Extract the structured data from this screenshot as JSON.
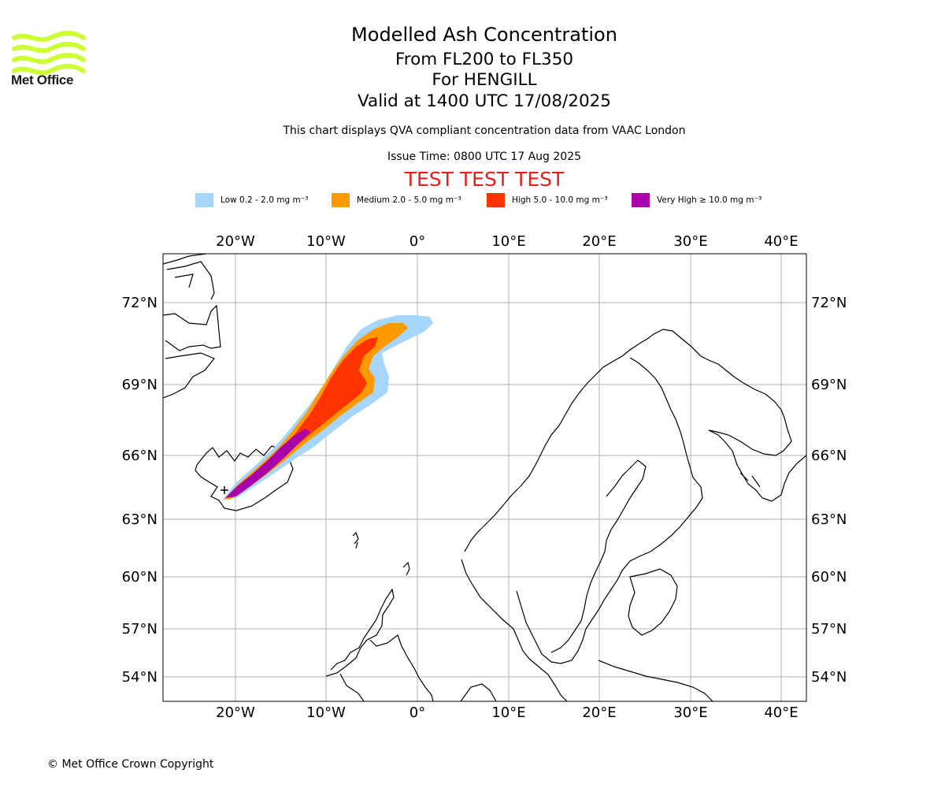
{
  "logo": {
    "text": "Met Office",
    "color": "#ccff33"
  },
  "header": {
    "title": "Modelled Ash Concentration",
    "levels": "From FL200 to FL350",
    "volcano": "For HENGILL",
    "valid": "Valid at 1400 UTC 17/08/2025",
    "description": "This chart displays QVA compliant concentration data from VAAC London",
    "issue_time": "Issue Time: 0800 UTC 17 Aug 2025",
    "test_banner": "TEST TEST TEST"
  },
  "legend": [
    {
      "label": "Low 0.2 - 2.0 mg m⁻³",
      "color": "#a6d6fb"
    },
    {
      "label": "Medium 2.0 - 5.0 mg m⁻³",
      "color": "#ff9900"
    },
    {
      "label": "High 5.0 - 10.0 mg m⁻³",
      "color": "#ff3300"
    },
    {
      "label": "Very High ≥ 10.0 mg m⁻³",
      "color": "#aa00aa"
    }
  ],
  "map": {
    "lon_ticks": [
      "20°W",
      "10°W",
      "0°",
      "10°E",
      "20°E",
      "30°E",
      "40°E"
    ],
    "lat_ticks": [
      "72°N",
      "69°N",
      "66°N",
      "63°N",
      "60°N",
      "57°N",
      "54°N"
    ],
    "grid_color": "#b3b3b3"
  },
  "footer": {
    "copyright": "© Met Office Crown Copyright"
  }
}
